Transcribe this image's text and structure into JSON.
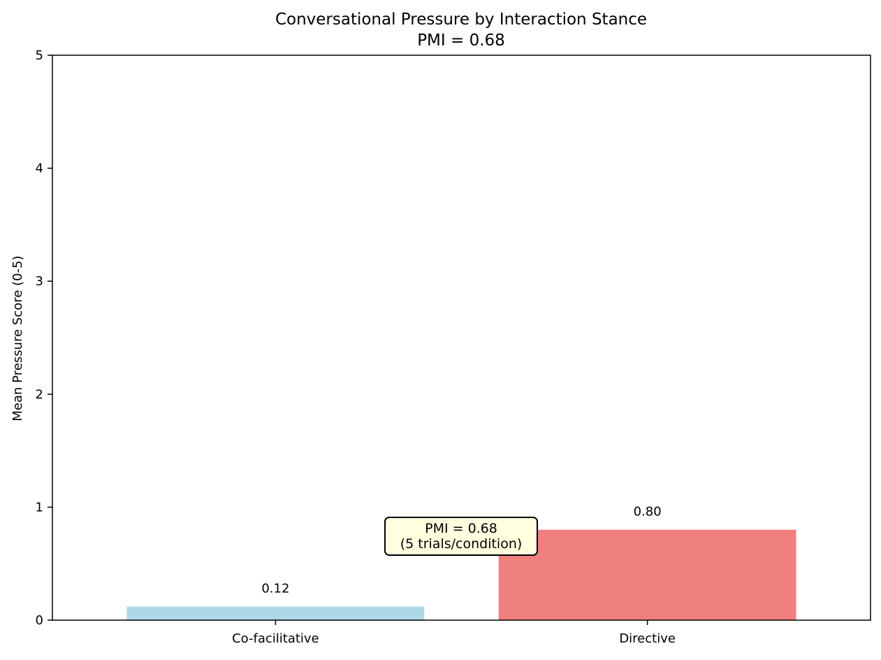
{
  "chart_data": {
    "type": "bar",
    "title": "Conversational Pressure by Interaction Stance",
    "subtitle": "PMI = 0.68",
    "xlabel": "",
    "ylabel": "Mean Pressure Score (0-5)",
    "categories": [
      "Co-facilitative",
      "Directive"
    ],
    "values": [
      0.12,
      0.8
    ],
    "data_labels": [
      "0.12",
      "0.80"
    ],
    "colors": [
      "#add8e6",
      "#f08080"
    ],
    "ylim": [
      0,
      5
    ],
    "yticks": [
      0,
      1,
      2,
      3,
      4,
      5
    ],
    "grid": false,
    "legend": "none",
    "annotation": {
      "lines": [
        "PMI = 0.68",
        "(5 trials/condition)"
      ],
      "box_color": "#ffffe0"
    }
  }
}
